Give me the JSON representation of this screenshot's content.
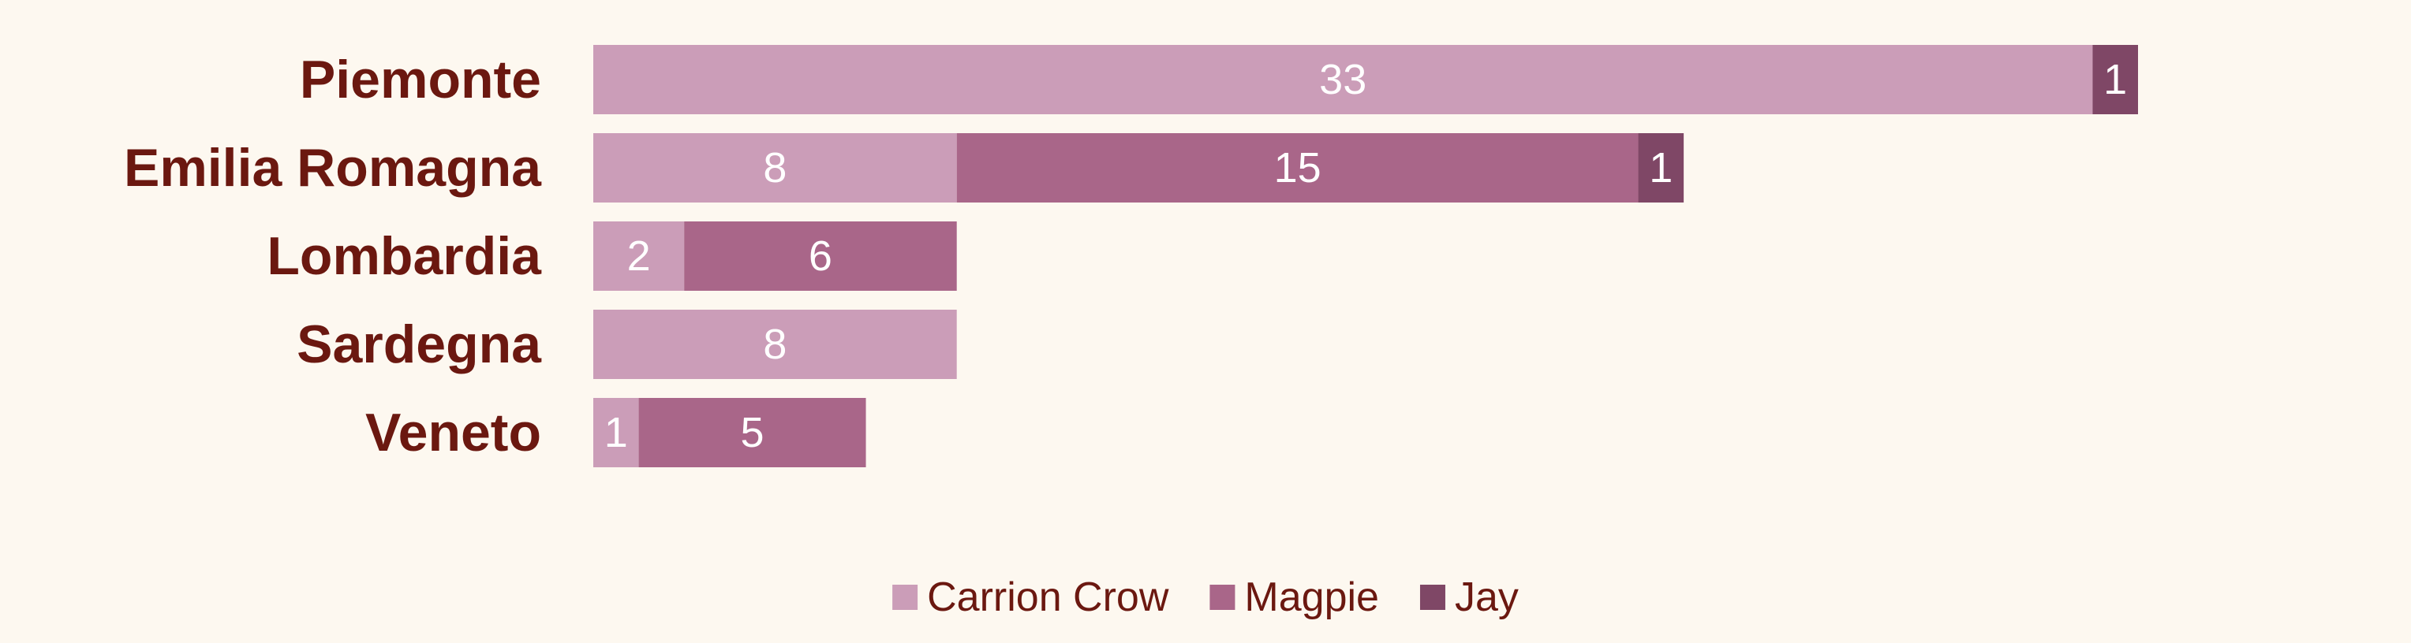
{
  "chart_data": {
    "type": "bar",
    "orientation": "horizontal",
    "stacked": true,
    "categories": [
      "Piemonte",
      "Emilia Romagna",
      "Lombardia",
      "Sardegna",
      "Veneto"
    ],
    "series": [
      {
        "name": "Carrion Crow",
        "color": "#cb9db8",
        "values": [
          33,
          8,
          2,
          8,
          1
        ]
      },
      {
        "name": "Magpie",
        "color": "#a96689",
        "values": [
          0,
          15,
          6,
          0,
          5
        ]
      },
      {
        "name": "Jay",
        "color": "#7f4766",
        "values": [
          1,
          1,
          0,
          0,
          0
        ]
      }
    ],
    "xlim": [
      0,
      34
    ],
    "grid": false,
    "legend_position": "bottom-center",
    "data_labels": true
  },
  "colors": {
    "background": "#fdf8f0",
    "category_label": "#6b1810",
    "legend_text": "#6b1810",
    "data_label": "#ffffff"
  }
}
